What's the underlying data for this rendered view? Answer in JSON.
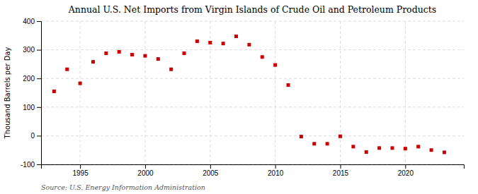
{
  "chart_data": {
    "type": "scatter",
    "title": "Annual U.S. Net Imports from Virgin Islands of Crude Oil and Petroleum Products",
    "ylabel": "Thousand Barrels per Day",
    "annotations": [
      "Source: U.S. Energy Information Administration"
    ],
    "x": [
      1993,
      1994,
      1995,
      1996,
      1997,
      1998,
      1999,
      2000,
      2001,
      2002,
      2003,
      2004,
      2005,
      2006,
      2007,
      2008,
      2009,
      2010,
      2011,
      2012,
      2013,
      2014,
      2015,
      2016,
      2017,
      2018,
      2019,
      2020,
      2021,
      2022,
      2023
    ],
    "values": [
      155,
      232,
      183,
      258,
      288,
      293,
      283,
      279,
      268,
      232,
      288,
      330,
      325,
      322,
      347,
      318,
      275,
      247,
      177,
      -3,
      -28,
      -28,
      -2,
      -38,
      -57,
      -43,
      -43,
      -45,
      -38,
      -50,
      -58
    ],
    "color": "#cc0000",
    "marker": "square",
    "xlim": [
      1992,
      2024.5
    ],
    "xticks": [
      1995,
      2000,
      2005,
      2010,
      2015,
      2020
    ],
    "ylim": [
      -100,
      400
    ],
    "yticks": [
      -100,
      0,
      100,
      200,
      300,
      400
    ],
    "grid": true
  }
}
